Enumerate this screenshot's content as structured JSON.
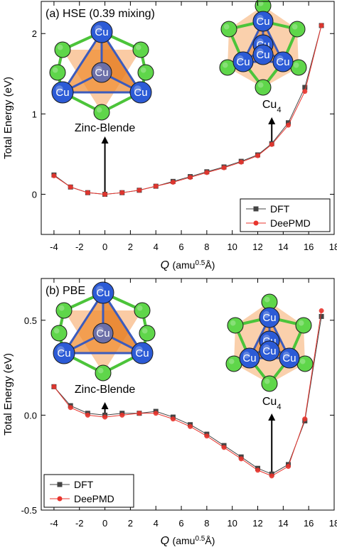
{
  "chart_data": [
    {
      "type": "line",
      "panel_label": "(a) HSE (0.39 mixing)",
      "xlabel_symbol": "Q",
      "xlabel_unit_prefix": "(amu",
      "xlabel_unit_exp": "0.5",
      "xlabel_unit_suffix": "Å)",
      "ylabel": "Total Energy (eV)",
      "xlim": [
        -5,
        18
      ],
      "ylim": [
        -0.5,
        2.4
      ],
      "xticks": [
        -4,
        -2,
        0,
        2,
        4,
        6,
        8,
        10,
        12,
        14,
        16,
        18
      ],
      "xtick_labels": [
        "-4",
        "-2",
        "0",
        "2",
        "4",
        "6",
        "8",
        "10",
        "12",
        "14",
        "16",
        "18"
      ],
      "yticks": [
        0,
        1,
        2
      ],
      "ytick_labels": [
        "0",
        "1",
        "2"
      ],
      "series": [
        {
          "name": "DFT",
          "color": "#444444",
          "marker": "square",
          "x": [
            -4,
            -2.7,
            -1.35,
            0,
            1.35,
            2.7,
            4,
            5.35,
            6.7,
            8,
            9.35,
            10.7,
            12,
            13.1,
            14.4,
            15.7,
            17
          ],
          "y": [
            0.24,
            0.09,
            0.02,
            0.0,
            0.02,
            0.05,
            0.1,
            0.16,
            0.22,
            0.28,
            0.34,
            0.41,
            0.49,
            0.63,
            0.89,
            1.33,
            2.1
          ]
        },
        {
          "name": "DeePMD",
          "color": "#e8352e",
          "marker": "circle",
          "x": [
            -4,
            -2.7,
            -1.35,
            0,
            1.35,
            2.7,
            4,
            5.35,
            6.7,
            8,
            9.35,
            10.7,
            12,
            13.1,
            14.4,
            15.7,
            17
          ],
          "y": [
            0.23,
            0.09,
            0.02,
            0.0,
            0.02,
            0.05,
            0.1,
            0.15,
            0.21,
            0.27,
            0.33,
            0.4,
            0.48,
            0.62,
            0.86,
            1.28,
            2.1
          ]
        }
      ],
      "legend_position": "bottom-right",
      "annotations": [
        {
          "text": "Zinc-Blende",
          "arrow_x": 0
        },
        {
          "text": "Cu",
          "sub": "4",
          "arrow_x": 13.1
        }
      ],
      "atom_labels": [
        "Cu",
        "Cu",
        "Cu",
        "Cu"
      ],
      "atom_labels_cu4": [
        "Cu",
        "Cu",
        "Cu",
        "Cu",
        "Cu"
      ]
    },
    {
      "type": "line",
      "panel_label": "(b) PBE",
      "xlabel_symbol": "Q",
      "xlabel_unit_prefix": "(amu",
      "xlabel_unit_exp": "0.5",
      "xlabel_unit_suffix": "Å)",
      "ylabel": "Total Energy (eV)",
      "xlim": [
        -5,
        18
      ],
      "ylim": [
        -0.5,
        0.72
      ],
      "xticks": [
        -4,
        -2,
        0,
        2,
        4,
        6,
        8,
        10,
        12,
        14,
        16,
        18
      ],
      "xtick_labels": [
        "-4",
        "-2",
        "0",
        "2",
        "4",
        "6",
        "8",
        "10",
        "12",
        "14",
        "16",
        "18"
      ],
      "yticks": [
        -0.5,
        0.0,
        0.5
      ],
      "ytick_labels": [
        "-0.5",
        "0.0",
        "0.5"
      ],
      "series": [
        {
          "name": "DFT",
          "color": "#444444",
          "marker": "square",
          "x": [
            -4,
            -2.7,
            -1.35,
            0,
            1.35,
            2.7,
            4,
            5.35,
            6.7,
            8,
            9.35,
            10.7,
            12,
            13.1,
            14.4,
            15.7,
            17
          ],
          "y": [
            0.15,
            0.05,
            0.01,
            0.0,
            0.01,
            0.01,
            0.02,
            -0.01,
            -0.05,
            -0.1,
            -0.16,
            -0.22,
            -0.28,
            -0.31,
            -0.26,
            -0.03,
            0.52
          ]
        },
        {
          "name": "DeePMD",
          "color": "#e8352e",
          "marker": "circle",
          "x": [
            -4,
            -2.7,
            -1.35,
            0,
            1.35,
            2.7,
            4,
            5.35,
            6.7,
            8,
            9.35,
            10.7,
            12,
            13.1,
            14.4,
            15.7,
            17
          ],
          "y": [
            0.15,
            0.04,
            -0.0,
            -0.01,
            0.0,
            0.01,
            0.01,
            -0.02,
            -0.06,
            -0.11,
            -0.17,
            -0.23,
            -0.29,
            -0.32,
            -0.27,
            -0.02,
            0.55
          ]
        }
      ],
      "legend_position": "bottom-left",
      "annotations": [
        {
          "text": "Zinc-Blende",
          "arrow_x": 0
        },
        {
          "text": "Cu",
          "sub": "4",
          "arrow_x": 13.1
        }
      ],
      "atom_labels": [
        "Cu",
        "Cu",
        "Cu",
        "Cu"
      ],
      "atom_labels_cu4": [
        "Cu",
        "Cu",
        "Cu",
        "Cu",
        "Cu"
      ]
    }
  ]
}
